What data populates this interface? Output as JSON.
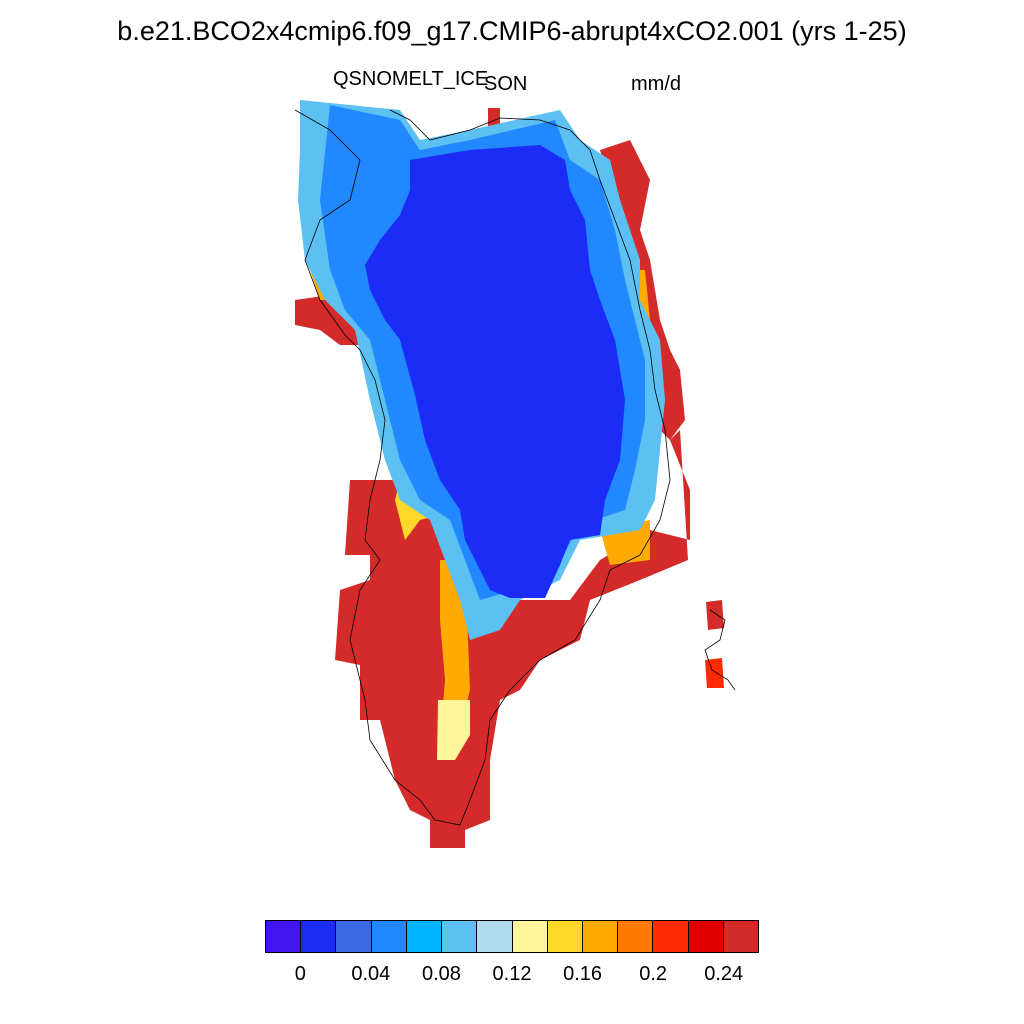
{
  "title": "b.e21.BCO2x4cmip6.f09_g17.CMIP6-abrupt4xCO2.001 (yrs 1-25)",
  "variable_label": "QSNOMELT_ICE",
  "season_label": "SON",
  "units_label": "mm/d",
  "colors": {
    "deep_blue": "#1a2cf5",
    "outline": "#000000",
    "dark_red": "#d42a2a"
  },
  "chart_data": {
    "type": "heatmap",
    "title": "b.e21.BCO2x4cmip6.f09_g17.CMIP6-abrupt4xCO2.001 (yrs 1-25)",
    "subtitle_left": "QSNOMELT_ICE",
    "subtitle_center": "SON",
    "subtitle_right": "mm/d",
    "region": "Greenland",
    "colorbar": {
      "colors": [
        "#4015f0",
        "#1a2cf5",
        "#3d68e5",
        "#2288ff",
        "#00b4ff",
        "#5cc0f2",
        "#b0dcf0",
        "#fff59a",
        "#ffd82a",
        "#ffaa00",
        "#ff7a00",
        "#ff2a00",
        "#e00000",
        "#d42a2a"
      ],
      "ticks": [
        "0",
        "0.04",
        "0.08",
        "0.12",
        "0.16",
        "0.2",
        "0.24"
      ],
      "levels": [
        0,
        0.02,
        0.04,
        0.06,
        0.08,
        0.1,
        0.12,
        0.14,
        0.16,
        0.18,
        0.2,
        0.22,
        0.24
      ]
    },
    "pattern": {
      "interior": "< 0.02 mm/d (deep blue) across ice-sheet interior",
      "margins": "0.04-0.22 mm/d gradient band along ice-sheet edges",
      "south_and_coast": "> 0.24 mm/d (dark red) over southern Greenland and coastal cells"
    }
  }
}
